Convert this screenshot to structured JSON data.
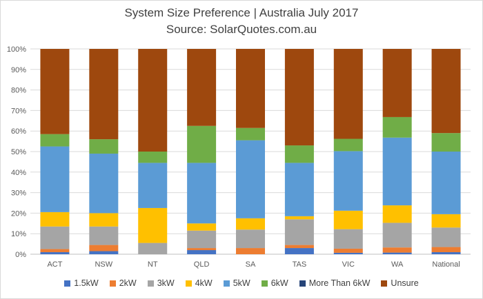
{
  "chart_data": {
    "type": "bar",
    "stacked": true,
    "title": "System Size Preference | Australia July 2017",
    "subtitle": "Source: SolarQuotes.com.au",
    "xlabel": "",
    "ylabel": "",
    "ylim": [
      0,
      100
    ],
    "yticks": [
      "0%",
      "10%",
      "20%",
      "30%",
      "40%",
      "50%",
      "60%",
      "70%",
      "80%",
      "90%",
      "100%"
    ],
    "grid": true,
    "legend_position": "bottom",
    "categories": [
      "ACT",
      "NSW",
      "NT",
      "QLD",
      "SA",
      "TAS",
      "VIC",
      "WA",
      "National"
    ],
    "series": [
      {
        "name": "1.5kW",
        "color": "#4472C4",
        "values": [
          1.0,
          1.5,
          0.0,
          2.0,
          0.0,
          3.0,
          0.7,
          0.8,
          1.0
        ]
      },
      {
        "name": "2kW",
        "color": "#ED7D31",
        "values": [
          1.5,
          3.0,
          0.0,
          1.0,
          3.0,
          1.5,
          2.0,
          2.5,
          2.5
        ]
      },
      {
        "name": "3kW",
        "color": "#A5A5A5",
        "values": [
          11.0,
          9.0,
          5.5,
          8.5,
          9.0,
          12.5,
          9.5,
          12.0,
          9.5
        ]
      },
      {
        "name": "4kW",
        "color": "#FFC000",
        "values": [
          7.0,
          6.5,
          17.0,
          3.5,
          5.5,
          1.5,
          9.0,
          8.5,
          6.5
        ]
      },
      {
        "name": "5kW",
        "color": "#5B9BD5",
        "values": [
          32.0,
          29.0,
          22.0,
          29.5,
          38.0,
          26.0,
          29.0,
          33.0,
          30.5
        ]
      },
      {
        "name": "6kW",
        "color": "#70AD47",
        "values": [
          6.0,
          7.0,
          5.5,
          18.0,
          6.0,
          8.5,
          6.0,
          10.0,
          9.0
        ]
      },
      {
        "name": "More Than 6kW",
        "color": "#264478",
        "values": [
          0.0,
          0.0,
          0.0,
          0.0,
          0.0,
          0.0,
          0.0,
          0.0,
          0.0
        ]
      },
      {
        "name": "Unsure",
        "color": "#9E480E",
        "values": [
          41.5,
          44.0,
          50.0,
          37.5,
          38.5,
          47.0,
          43.8,
          33.2,
          41.0
        ]
      }
    ]
  }
}
